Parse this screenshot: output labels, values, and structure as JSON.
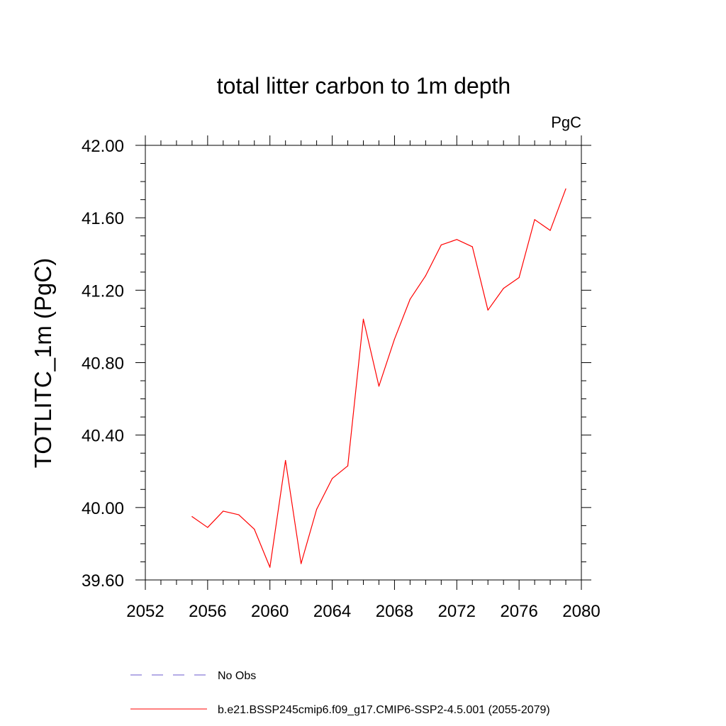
{
  "chart_data": {
    "type": "line",
    "title": "total litter carbon to 1m depth",
    "units": "PgC",
    "ylabel": "TOTLITC_1m  (PgC)",
    "xlabel": "",
    "xlim": [
      2052,
      2080
    ],
    "ylim": [
      39.6,
      42.0
    ],
    "x_ticks": [
      2052,
      2056,
      2060,
      2064,
      2068,
      2072,
      2076,
      2080
    ],
    "x_tick_labels": [
      "2052",
      "2056",
      "2060",
      "2064",
      "2068",
      "2072",
      "2076",
      "2080"
    ],
    "y_ticks": [
      39.6,
      40.0,
      40.4,
      40.8,
      41.2,
      41.6,
      42.0
    ],
    "y_tick_labels": [
      "39.60",
      "40.00",
      "40.40",
      "40.80",
      "41.20",
      "41.60",
      "42.00"
    ],
    "grid": false,
    "legend_position": "bottom",
    "series": [
      {
        "name": "b.e21.BSSP245cmip6.f09_g17.CMIP6-SSP2-4.5.001 (2055-2079)",
        "color": "#ff0000",
        "style": "solid",
        "x": [
          2055,
          2056,
          2057,
          2058,
          2059,
          2060,
          2061,
          2062,
          2063,
          2064,
          2065,
          2066,
          2067,
          2068,
          2069,
          2070,
          2071,
          2072,
          2073,
          2074,
          2075,
          2076,
          2077,
          2078,
          2079
        ],
        "y": [
          39.95,
          39.89,
          39.98,
          39.96,
          39.88,
          39.67,
          40.26,
          39.69,
          39.99,
          40.16,
          40.23,
          41.04,
          40.67,
          40.93,
          41.15,
          41.28,
          41.45,
          41.48,
          41.44,
          41.09,
          41.21,
          41.27,
          41.59,
          41.53,
          41.76
        ]
      }
    ],
    "legend": [
      {
        "label": "No Obs",
        "color": "#6a5acd",
        "style": "dashed"
      },
      {
        "label": "b.e21.BSSP245cmip6.f09_g17.CMIP6-SSP2-4.5.001 (2055-2079)",
        "color": "#ff0000",
        "style": "solid"
      }
    ]
  }
}
